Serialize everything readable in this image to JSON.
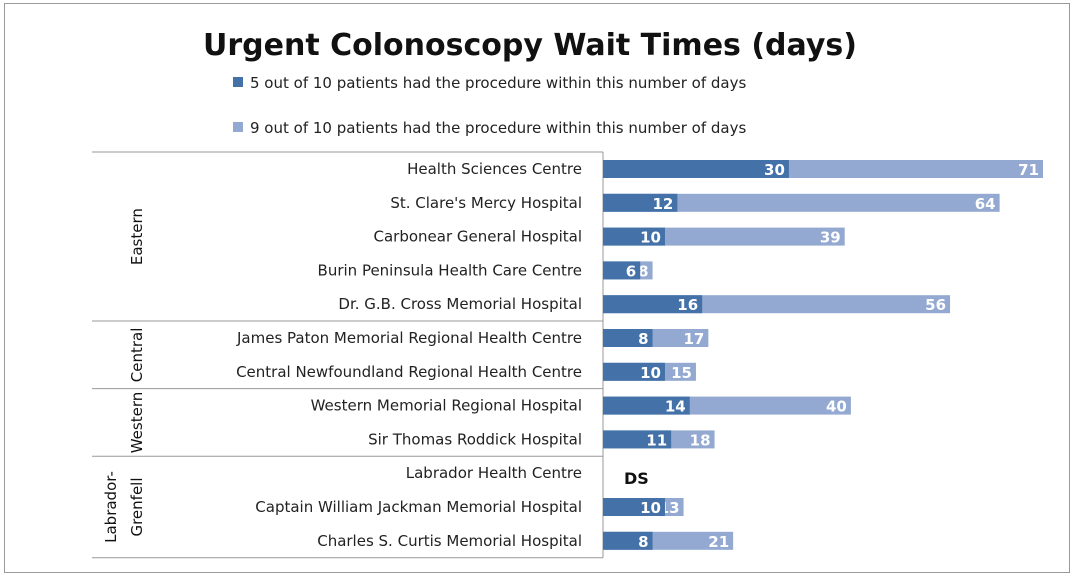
{
  "chart_data": {
    "type": "bar",
    "orientation": "horizontal",
    "title": "Urgent Colonoscopy Wait Times (days)",
    "xlabel": "",
    "ylabel": "",
    "xlim": [
      0,
      71
    ],
    "grid": false,
    "legend_placement": "top",
    "colors": {
      "median": "#4472a8",
      "p90": "#93a9d1"
    },
    "series": [
      {
        "name": "5 out of 10 patients had the procedure within this number of days",
        "key": "median",
        "values": [
          30,
          12,
          10,
          6,
          16,
          8,
          10,
          14,
          11,
          null,
          10,
          8
        ]
      },
      {
        "name": "9 out of 10 patients had the procedure within this number of days",
        "key": "p90",
        "values": [
          71,
          64,
          39,
          8,
          56,
          17,
          15,
          40,
          18,
          null,
          13,
          21
        ]
      }
    ],
    "categories": [
      "Health Sciences Centre",
      "St. Clare's Mercy Hospital",
      "Carbonear General Hospital",
      "Burin Peninsula Health Care Centre",
      "Dr. G.B. Cross Memorial Hospital",
      "James Paton Memorial Regional Health Centre",
      "Central Newfoundland Regional Health Centre",
      "Western Memorial Regional Hospital",
      "Sir Thomas Roddick Hospital",
      "Labrador Health Centre",
      "Captain William Jackman Memorial Hospital",
      "Charles S. Curtis Memorial Hospital"
    ],
    "annotations": [
      {
        "category_index": 9,
        "text": "DS"
      }
    ],
    "groups": [
      {
        "lines": [
          "Eastern"
        ],
        "start": 0,
        "end": 4
      },
      {
        "lines": [
          "Central"
        ],
        "start": 5,
        "end": 6
      },
      {
        "lines": [
          "Western"
        ],
        "start": 7,
        "end": 8
      },
      {
        "lines": [
          "Labrador-",
          "Grenfell"
        ],
        "start": 9,
        "end": 11
      }
    ]
  }
}
